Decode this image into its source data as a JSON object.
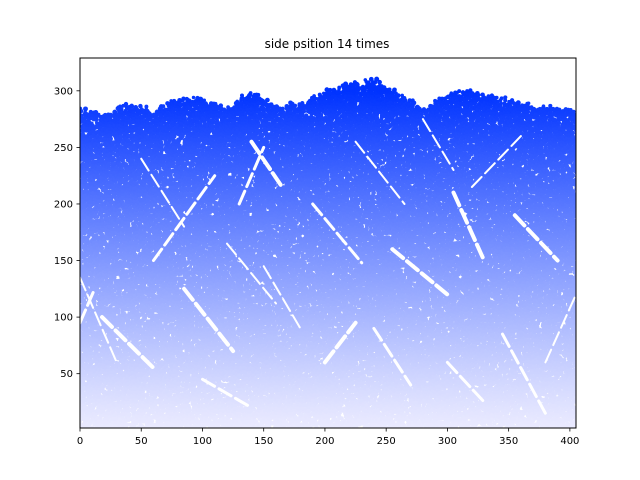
{
  "chart_data": {
    "type": "scatter",
    "title": "side psition 14 times",
    "xlabel": "",
    "ylabel": "",
    "xlim": [
      0,
      405
    ],
    "ylim": [
      2,
      329
    ],
    "xticks": [
      "0",
      "50",
      "100",
      "150",
      "200",
      "250",
      "300",
      "350",
      "400"
    ],
    "yticks": [
      "50",
      "100",
      "150",
      "200",
      "250",
      "300"
    ],
    "grid": false,
    "legend": "none",
    "colormap": [
      "#ebebff",
      "#0033ff"
    ],
    "top_envelope": {
      "x": [
        0,
        20,
        40,
        60,
        80,
        100,
        120,
        140,
        160,
        180,
        200,
        220,
        240,
        260,
        280,
        300,
        320,
        340,
        360,
        380,
        405
      ],
      "y": [
        283,
        279,
        289,
        281,
        293,
        292,
        284,
        300,
        287,
        289,
        298,
        305,
        309,
        299,
        283,
        297,
        300,
        294,
        288,
        286,
        282
      ]
    },
    "gap_streaks": [
      {
        "x": [
          0,
          30
        ],
        "y": [
          135,
          60
        ]
      },
      {
        "x": [
          0,
          12
        ],
        "y": [
          95,
          125
        ]
      },
      {
        "x": [
          18,
          60
        ],
        "y": [
          100,
          55
        ]
      },
      {
        "x": [
          50,
          85
        ],
        "y": [
          240,
          180
        ]
      },
      {
        "x": [
          60,
          110
        ],
        "y": [
          150,
          225
        ]
      },
      {
        "x": [
          85,
          125
        ],
        "y": [
          125,
          70
        ]
      },
      {
        "x": [
          120,
          160
        ],
        "y": [
          165,
          112
        ]
      },
      {
        "x": [
          130,
          150
        ],
        "y": [
          200,
          250
        ]
      },
      {
        "x": [
          140,
          165
        ],
        "y": [
          255,
          215
        ]
      },
      {
        "x": [
          150,
          180
        ],
        "y": [
          145,
          90
        ]
      },
      {
        "x": [
          190,
          230
        ],
        "y": [
          200,
          148
        ]
      },
      {
        "x": [
          200,
          225
        ],
        "y": [
          60,
          95
        ]
      },
      {
        "x": [
          225,
          265
        ],
        "y": [
          255,
          200
        ]
      },
      {
        "x": [
          240,
          270
        ],
        "y": [
          90,
          40
        ]
      },
      {
        "x": [
          255,
          300
        ],
        "y": [
          160,
          120
        ]
      },
      {
        "x": [
          280,
          305
        ],
        "y": [
          275,
          230
        ]
      },
      {
        "x": [
          300,
          330
        ],
        "y": [
          60,
          25
        ]
      },
      {
        "x": [
          305,
          330
        ],
        "y": [
          210,
          150
        ]
      },
      {
        "x": [
          320,
          360
        ],
        "y": [
          215,
          260
        ]
      },
      {
        "x": [
          345,
          380
        ],
        "y": [
          85,
          15
        ]
      },
      {
        "x": [
          355,
          390
        ],
        "y": [
          190,
          150
        ]
      },
      {
        "x": [
          380,
          405
        ],
        "y": [
          60,
          120
        ]
      },
      {
        "x": [
          100,
          140
        ],
        "y": [
          45,
          20
        ]
      }
    ]
  }
}
